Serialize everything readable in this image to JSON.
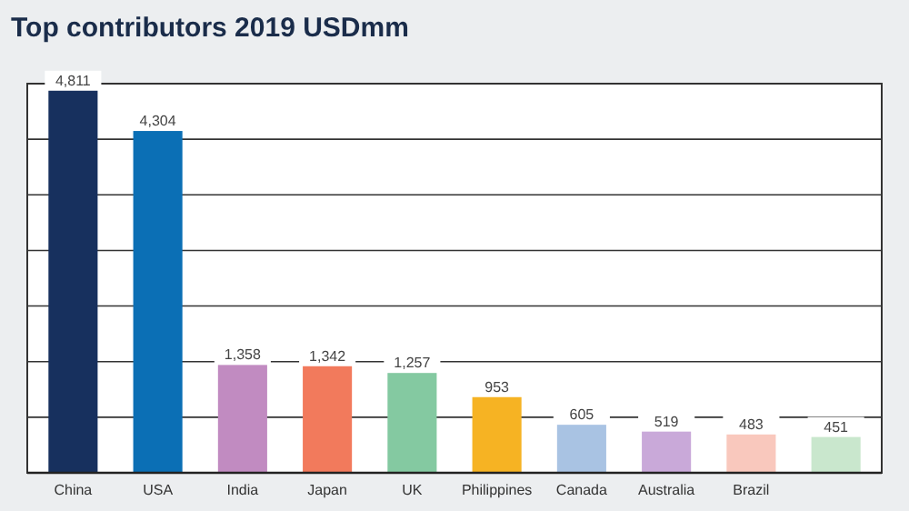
{
  "chart_data": {
    "type": "bar",
    "title": "Top contributors 2019 USDmm",
    "categories": [
      "China",
      "USA",
      "India",
      "Japan",
      "UK",
      "Philippines",
      "Canada",
      "Australia",
      "Brazil",
      null
    ],
    "values": [
      4811,
      4304,
      1358,
      1342,
      1257,
      953,
      605,
      519,
      483,
      451
    ],
    "colors": [
      "#17305e",
      "#0b6fb5",
      "#c18bc1",
      "#f27a5c",
      "#84c9a1",
      "#f6b323",
      "#a9c3e3",
      "#c9a9d9",
      "#f9c8bd",
      "#c9e7cd"
    ],
    "ylim": [
      0,
      4900
    ],
    "yticks": [
      {
        "value": 0,
        "label": null
      },
      {
        "value": 700,
        "label": null
      },
      {
        "value": 1400,
        "label": null
      },
      {
        "value": 2100,
        "label": null
      },
      {
        "value": 2800,
        "label": null
      },
      {
        "value": 3500,
        "label": null
      },
      {
        "value": 4200,
        "label": null
      },
      {
        "value": 4900,
        "label": null
      }
    ],
    "value_labels": [
      "4,811",
      "4,304",
      "1,358",
      "1,342",
      "1,257",
      "953",
      "605",
      "519",
      "483",
      "451"
    ],
    "grid": "y",
    "tick_labels": "x"
  }
}
